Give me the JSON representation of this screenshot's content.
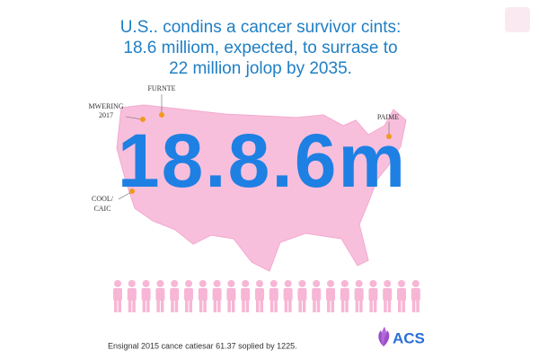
{
  "header": {
    "title_lines": [
      "U.S.. condins a cancer survivor cints:",
      "18.6 milliom, expected, to surrase to",
      "22 million jolop by 2035."
    ]
  },
  "headline_number": "18.8.6m",
  "map_labels": [
    {
      "lines": [
        "FURNTE"
      ]
    },
    {
      "lines": [
        "MWERING",
        "2017"
      ]
    },
    {
      "lines": [
        "PAIME"
      ]
    },
    {
      "lines": [
        "COOL/",
        "CAIC"
      ]
    }
  ],
  "footer": {
    "source": "Ensignal 2015 cance catiesar 61.37 soplied by 1225.",
    "logo": "ACS"
  }
}
